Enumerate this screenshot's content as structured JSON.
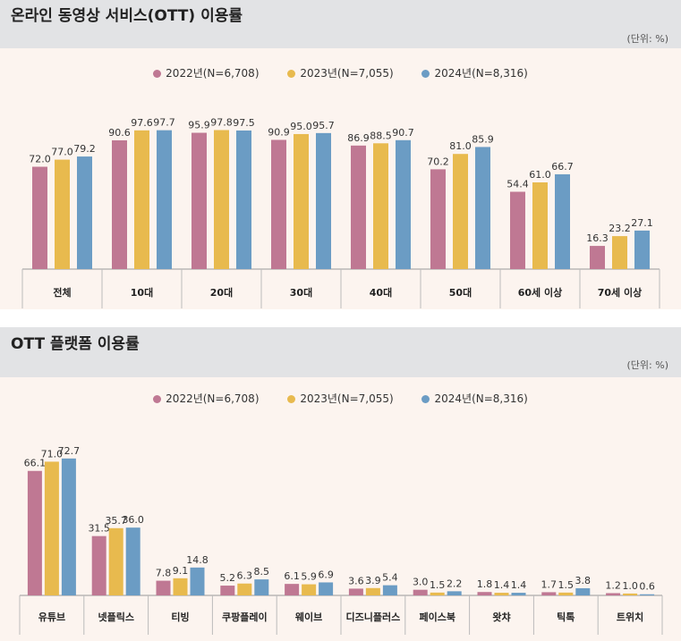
{
  "colors": {
    "2022": "#bf7893",
    "2023": "#e8ba4e",
    "2024": "#6b9cc4"
  },
  "legend": [
    {
      "label": "2022년(N=6,708)",
      "color": "#bf7893"
    },
    {
      "label": "2023년(N=7,055)",
      "color": "#e8ba4e"
    },
    {
      "label": "2024년(N=8,316)",
      "color": "#6b9cc4"
    }
  ],
  "chart_data": [
    {
      "type": "bar",
      "title": "온라인 동영상 서비스(OTT) 이용률",
      "unit": "(단위: %)",
      "categories": [
        "전체",
        "10대",
        "20대",
        "30대",
        "40대",
        "50대",
        "60세 이상",
        "70세 이상"
      ],
      "series": [
        {
          "name": "2022년(N=6,708)",
          "values": [
            72.0,
            90.6,
            95.9,
            90.9,
            86.9,
            70.2,
            54.4,
            16.3
          ]
        },
        {
          "name": "2023년(N=7,055)",
          "values": [
            77.0,
            97.6,
            97.8,
            95.0,
            88.5,
            81.0,
            61.0,
            23.2
          ]
        },
        {
          "name": "2024년(N=8,316)",
          "values": [
            79.2,
            97.7,
            97.5,
            95.7,
            90.7,
            85.9,
            66.7,
            27.1
          ]
        }
      ],
      "ylim": [
        0,
        100
      ],
      "grid": false,
      "legend_position": "top-center"
    },
    {
      "type": "bar",
      "title": "OTT 플랫폼 이용률",
      "unit": "(단위: %)",
      "categories": [
        "유튜브",
        "넷플릭스",
        "티빙",
        "쿠팡플레이",
        "웨이브",
        "디즈니플러스",
        "페이스북",
        "왓챠",
        "틱톡",
        "트위치"
      ],
      "series": [
        {
          "name": "2022년(N=6,708)",
          "values": [
            66.1,
            31.5,
            7.8,
            5.2,
            6.1,
            3.6,
            3.0,
            1.8,
            1.7,
            1.2
          ]
        },
        {
          "name": "2023년(N=7,055)",
          "values": [
            71.0,
            35.7,
            9.1,
            6.3,
            5.9,
            3.9,
            1.5,
            1.4,
            1.5,
            1.0
          ]
        },
        {
          "name": "2024년(N=8,316)",
          "values": [
            72.7,
            36.0,
            14.8,
            8.5,
            6.9,
            5.4,
            2.2,
            1.4,
            3.8,
            0.6
          ]
        }
      ],
      "ylim": [
        0,
        75
      ],
      "grid": false,
      "legend_position": "top-center"
    }
  ]
}
